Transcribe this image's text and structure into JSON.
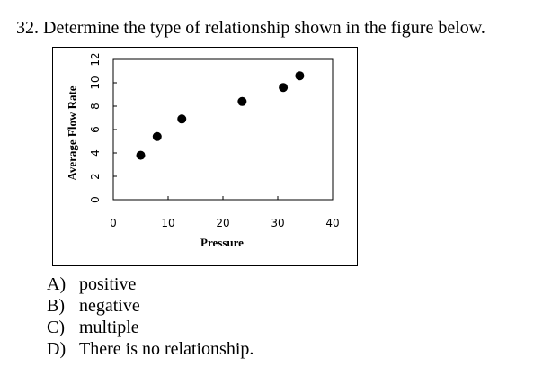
{
  "question": {
    "text": "32. Determine the type of relationship shown in the figure below."
  },
  "chart_data": {
    "type": "scatter",
    "xlabel": "Pressure",
    "ylabel": "Average Flow Rate",
    "xlim": [
      0,
      40
    ],
    "ylim": [
      0,
      12
    ],
    "xticks": [
      0,
      10,
      20,
      30,
      40
    ],
    "yticks": [
      0,
      2,
      4,
      6,
      8,
      10,
      12
    ],
    "grid": false,
    "points": [
      {
        "x": 5,
        "y": 3.8
      },
      {
        "x": 8,
        "y": 5.4
      },
      {
        "x": 12.5,
        "y": 6.9
      },
      {
        "x": 23.5,
        "y": 8.4
      },
      {
        "x": 31,
        "y": 9.6
      },
      {
        "x": 34,
        "y": 10.6
      }
    ],
    "marker_color": "#000000"
  },
  "choices": [
    {
      "letter": "A)",
      "text": "positive"
    },
    {
      "letter": "B)",
      "text": "negative"
    },
    {
      "letter": "C)",
      "text": "multiple"
    },
    {
      "letter": "D)",
      "text": "There is no relationship."
    }
  ]
}
